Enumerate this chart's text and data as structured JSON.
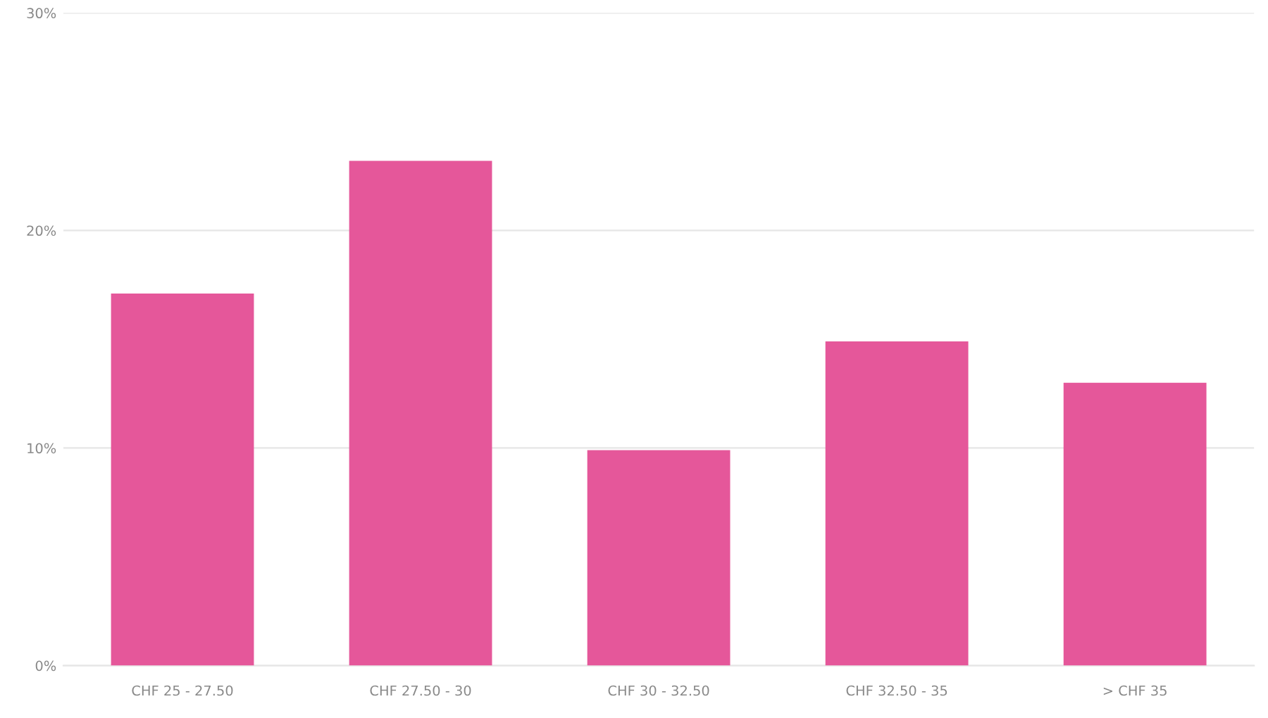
{
  "chart_data": {
    "type": "bar",
    "categories": [
      "CHF 25 - 27.50",
      "CHF 27.50 - 30",
      "CHF 30 - 32.50",
      "CHF 32.50 - 35",
      "> CHF 35"
    ],
    "values": [
      17.1,
      23.2,
      9.9,
      14.9,
      13.0
    ],
    "color": "#e5579a",
    "ylim": [
      0,
      30
    ],
    "yticks": [
      {
        "value": 0,
        "label": "0%"
      },
      {
        "value": 10,
        "label": "10%"
      },
      {
        "value": 20,
        "label": "20%"
      },
      {
        "value": 30,
        "label": "30%"
      }
    ],
    "grid": "y"
  }
}
